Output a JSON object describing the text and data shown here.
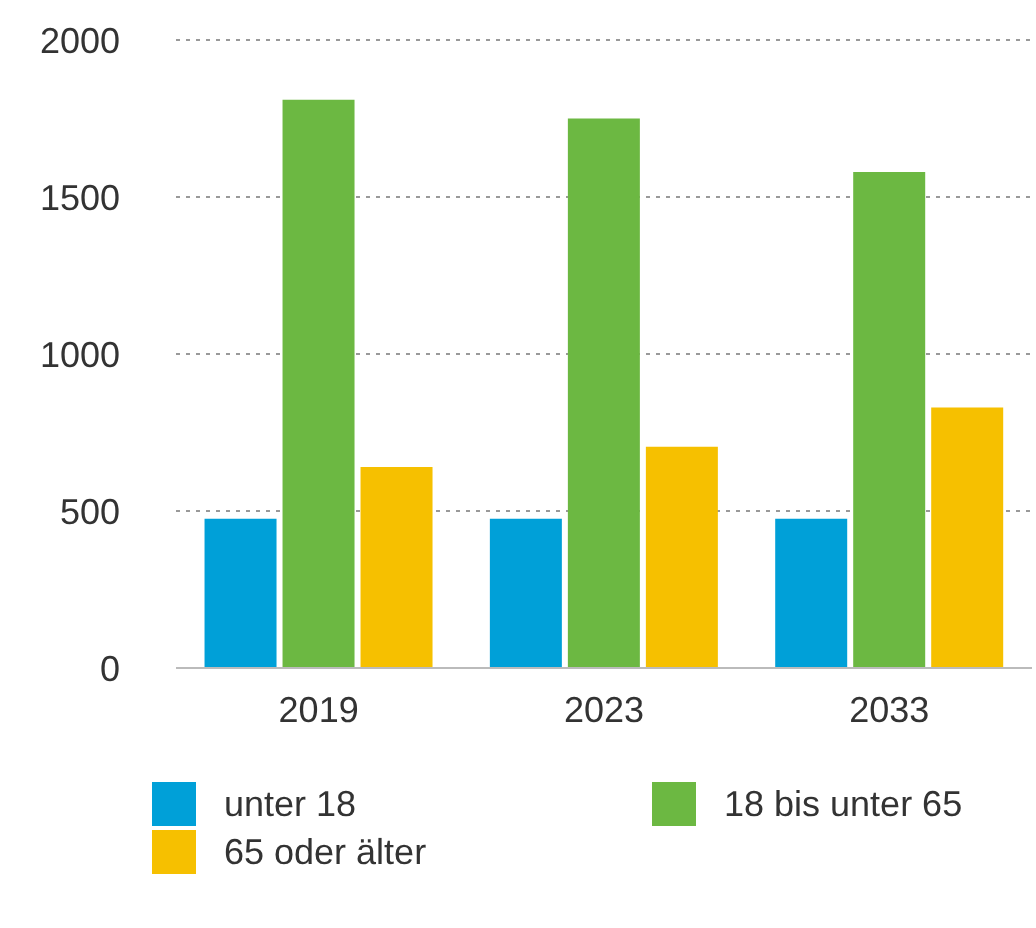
{
  "chart_data": {
    "type": "bar",
    "categories": [
      "2019",
      "2023",
      "2033"
    ],
    "series": [
      {
        "name": "unter 18",
        "color": "#00a0d8",
        "values": [
          475,
          475,
          475
        ]
      },
      {
        "name": "18 bis unter 65",
        "color": "#6cb842",
        "values": [
          1810,
          1750,
          1580
        ]
      },
      {
        "name": "65 oder älter",
        "color": "#f6c000",
        "values": [
          640,
          705,
          830
        ]
      }
    ],
    "ylim": [
      0,
      2000
    ],
    "yticks": [
      0,
      500,
      1000,
      1500,
      2000
    ],
    "grid": "y",
    "legend": "bottom"
  }
}
